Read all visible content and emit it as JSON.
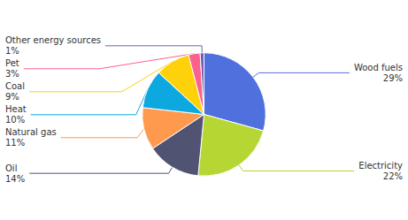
{
  "chart_data": {
    "type": "pie",
    "categories": [
      "Wood fuels",
      "Electricity",
      "Oil",
      "Natural gas",
      "Heat",
      "Coal",
      "Pet",
      "Other energy sources"
    ],
    "values": [
      29,
      22,
      14,
      11,
      10,
      9,
      3,
      1
    ],
    "value_labels": [
      "29%",
      "22%",
      "14%",
      "11%",
      "10%",
      "9%",
      "3%",
      "1%"
    ],
    "data_labels": true
  }
}
